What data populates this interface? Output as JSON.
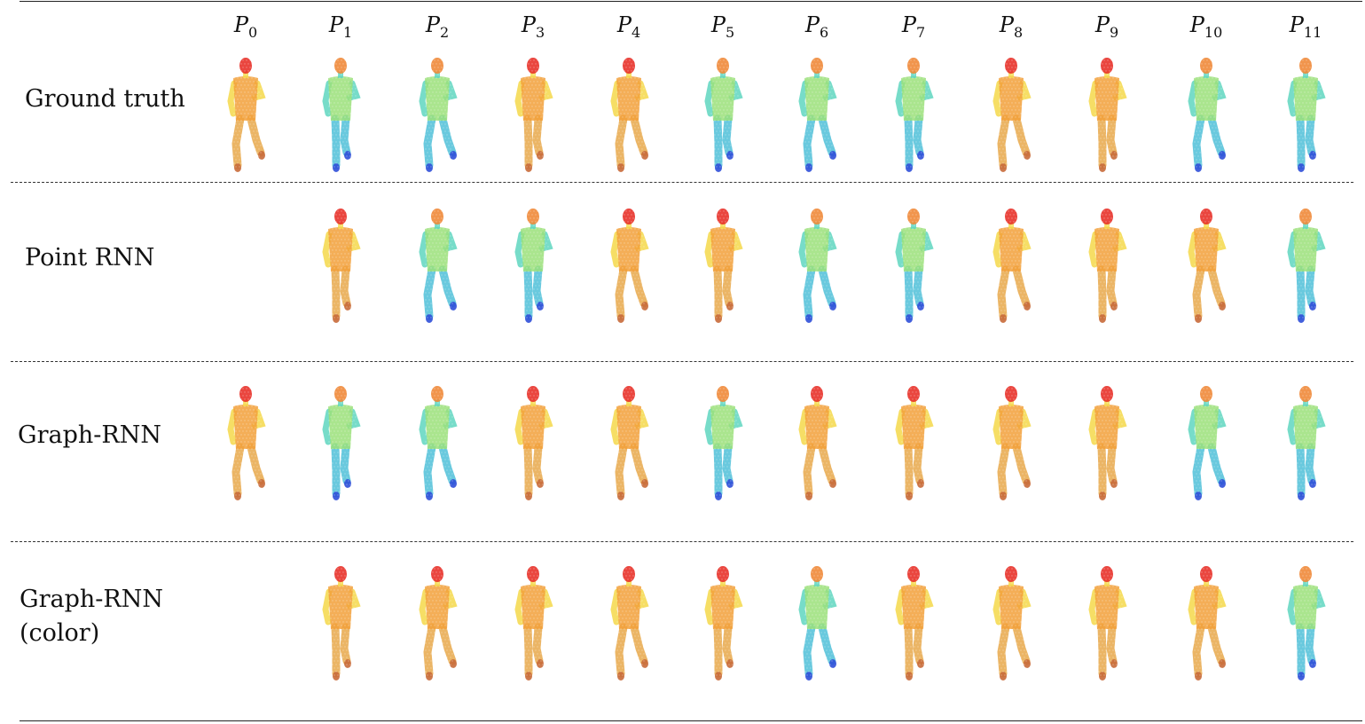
{
  "columns": [
    {
      "base": "P",
      "sub": "0"
    },
    {
      "base": "P",
      "sub": "1"
    },
    {
      "base": "P",
      "sub": "2"
    },
    {
      "base": "P",
      "sub": "3"
    },
    {
      "base": "P",
      "sub": "4"
    },
    {
      "base": "P",
      "sub": "5"
    },
    {
      "base": "P",
      "sub": "6"
    },
    {
      "base": "P",
      "sub": "7"
    },
    {
      "base": "P",
      "sub": "8"
    },
    {
      "base": "P",
      "sub": "9"
    },
    {
      "base": "P",
      "sub": "10"
    },
    {
      "base": "P",
      "sub": "11"
    }
  ],
  "rows": [
    {
      "label": "Ground truth",
      "frames": [
        "warm",
        "green",
        "green",
        "warm",
        "warm",
        "green",
        "green",
        "green",
        "warm",
        "warm",
        "green",
        "green"
      ]
    },
    {
      "label": "Point RNN",
      "frames": [
        null,
        "warm",
        "green",
        "green",
        "warm",
        "warm",
        "green",
        "green",
        "warm",
        "warm",
        "warm",
        "green"
      ]
    },
    {
      "label": "Graph-RNN",
      "frames": [
        "warm",
        "green",
        "green",
        "warm",
        "warm",
        "green",
        "warm",
        "warm",
        "warm",
        "warm",
        "green",
        "green"
      ]
    },
    {
      "label_lines": [
        "Graph-RNN",
        "(color)"
      ],
      "frames": [
        null,
        "warm",
        "warm",
        "warm",
        "warm",
        "warm",
        "green",
        "warm",
        "warm",
        "warm",
        "warm",
        "green"
      ]
    }
  ],
  "palette": {
    "warm": {
      "head": "#e8322a",
      "torso": "#f2a03a",
      "arm": "#f5d84a",
      "leg": "#e8a84a",
      "foot": "#c86a3a"
    },
    "green": {
      "head": "#f08a3a",
      "torso": "#9be07a",
      "arm": "#5fd6c0",
      "leg": "#4fc0d8",
      "foot": "#2f4fd8"
    }
  },
  "figure_icon": "running-person-point-cloud"
}
